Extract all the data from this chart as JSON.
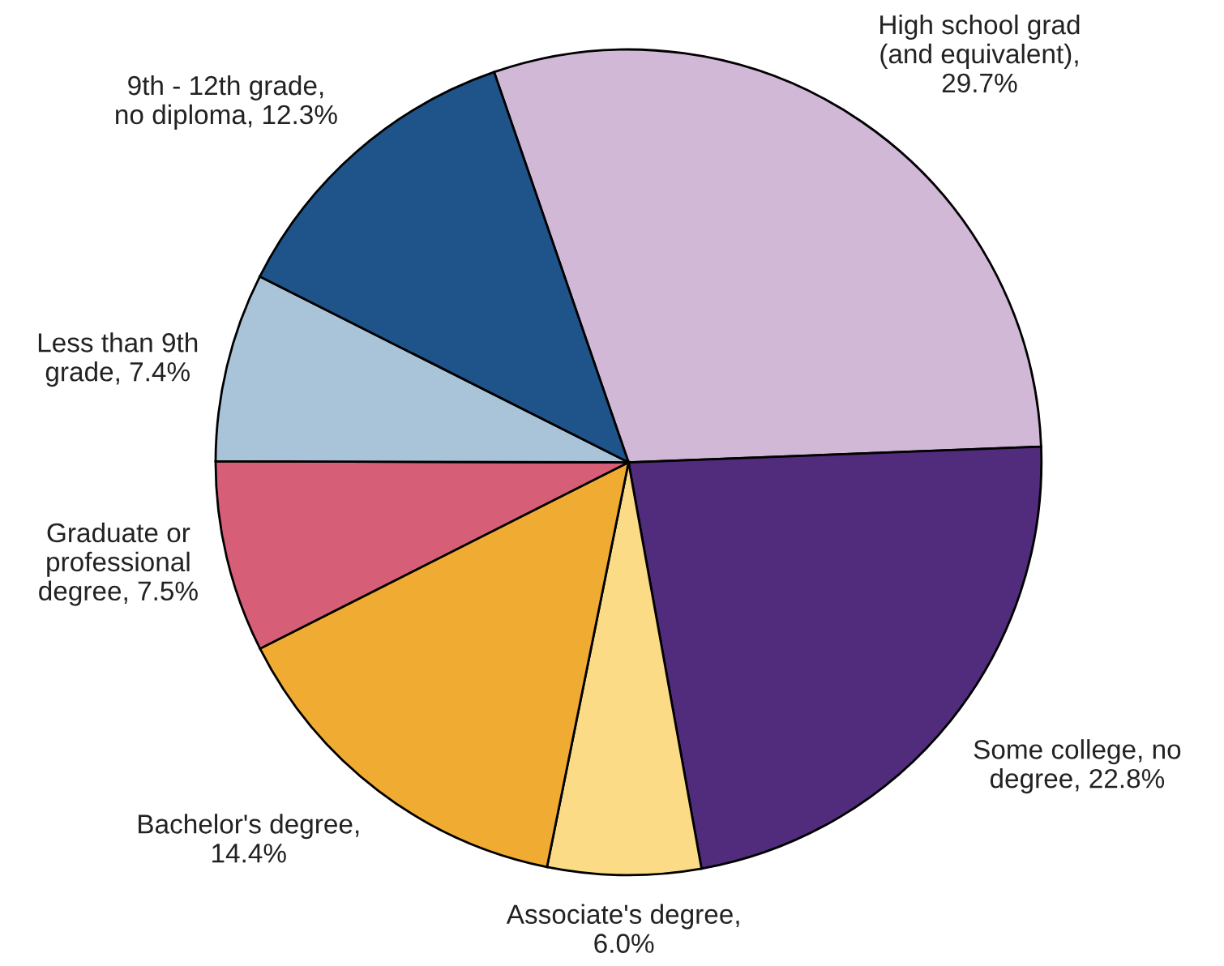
{
  "chart_data": {
    "type": "pie",
    "categories": [
      "High school grad\n(and equivalent),\n29.7%",
      "Some college, no\ndegree, 22.8%",
      "Associate's degree,\n6.0%",
      "Bachelor's degree,\n14.4%",
      "Graduate or\nprofessional\ndegree, 7.5%",
      "Less than 9th\ngrade, 7.4%",
      "9th - 12th grade,\nno diploma, 12.3%"
    ],
    "values": [
      29.7,
      22.8,
      6.0,
      14.4,
      7.5,
      7.4,
      12.3
    ],
    "colors": [
      "#d0b8d6",
      "#512c7c",
      "#fbdb85",
      "#f0ac32",
      "#d65f77",
      "#a9c4d8",
      "#1f548a"
    ]
  }
}
